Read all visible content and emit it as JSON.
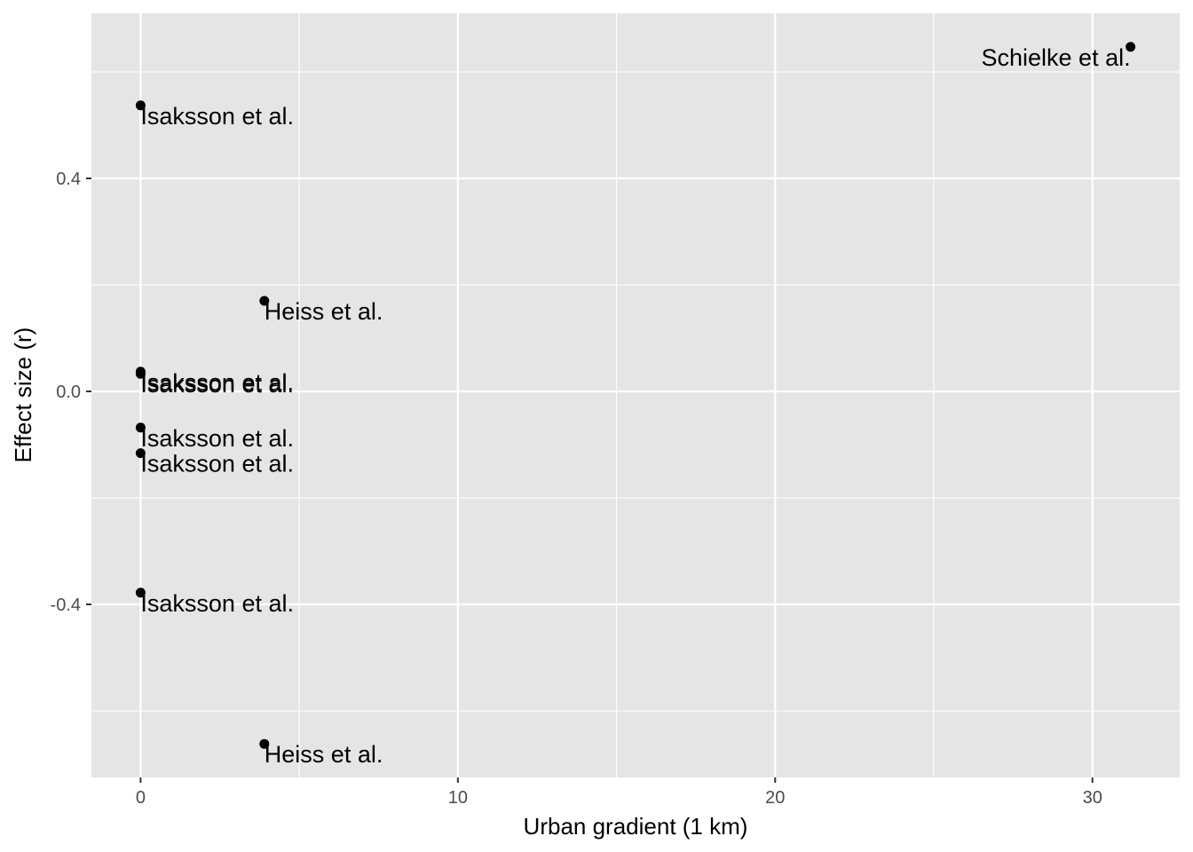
{
  "chart_data": {
    "type": "scatter",
    "title": "",
    "xlabel": "Urban gradient (1 km)",
    "ylabel": "Effect size (r)",
    "xlim": [
      -1.55,
      32.75
    ],
    "ylim": [
      -0.725,
      0.71
    ],
    "x_ticks": [
      0,
      10,
      20,
      30
    ],
    "x_tick_labels": [
      "0",
      "10",
      "20",
      "30"
    ],
    "y_ticks": [
      -0.4,
      0.0,
      0.4
    ],
    "y_tick_labels": [
      "-0.4",
      "0.0",
      "0.4"
    ],
    "grid": true,
    "panel_background": "#e5e5e5",
    "grid_color": "#ffffff",
    "point_color": "#000000",
    "points": [
      {
        "x": 0,
        "y": 0.537,
        "label": "Isaksson et al.",
        "hjust": 0
      },
      {
        "x": 31.2,
        "y": 0.647,
        "label": "Schielke et al.",
        "hjust": 1
      },
      {
        "x": 3.9,
        "y": 0.17,
        "label": "Heiss et al.",
        "hjust": 0
      },
      {
        "x": 0,
        "y": 0.037,
        "label": "Isaksson et al.",
        "hjust": 0
      },
      {
        "x": 0,
        "y": 0.033,
        "label": "Isaksson et al.",
        "hjust": 0
      },
      {
        "x": 0,
        "y": -0.068,
        "label": "Isaksson et al.",
        "hjust": 0
      },
      {
        "x": 0,
        "y": -0.116,
        "label": "Isaksson et al.",
        "hjust": 0
      },
      {
        "x": 0,
        "y": -0.378,
        "label": "Isaksson et al.",
        "hjust": 0
      },
      {
        "x": 3.9,
        "y": -0.662,
        "label": "Heiss et al.",
        "hjust": 0
      }
    ]
  }
}
